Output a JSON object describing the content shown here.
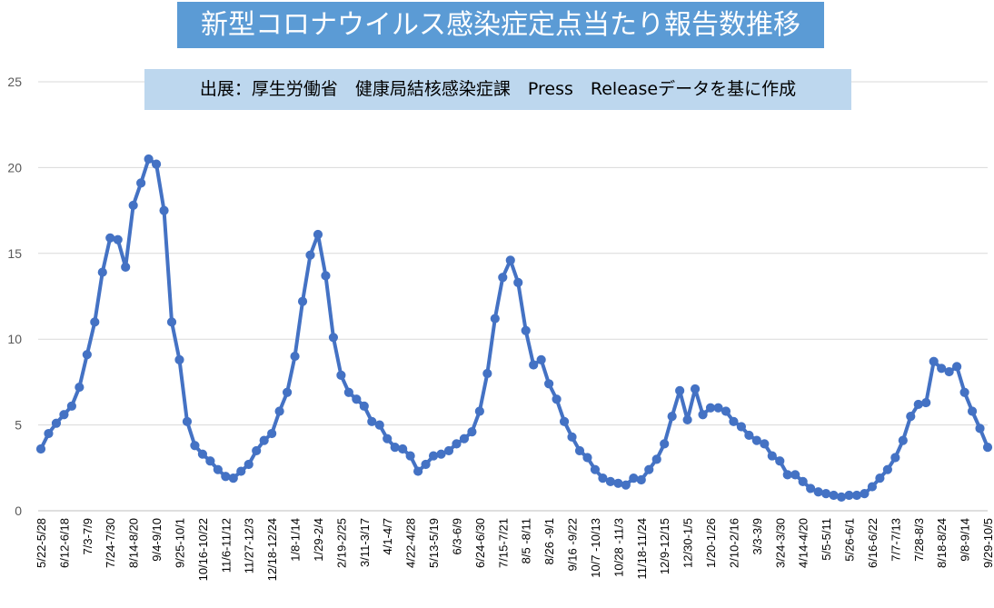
{
  "chart_data": {
    "type": "line",
    "title": "新型コロナウイルス感染症定点当たり報告数推移",
    "subtitle": "出展：厚生労働省　健康局結核感染症課　Press　Releaseデータを基に作成",
    "xlabel": "",
    "ylabel": "",
    "ylim": [
      0,
      25
    ],
    "yticks": [
      0,
      5,
      10,
      15,
      20,
      25
    ],
    "grid": true,
    "legend": "none",
    "colors": {
      "series": "#4472c4",
      "title_bg": "#5b9bd5",
      "subtitle_bg": "#bdd7ee",
      "grid": "#d9d9d9"
    },
    "x_labels": [
      "5/22-5/28",
      "6/12-6/18",
      "7/3-7/9",
      "7/24-7/30",
      "8/14-8/20",
      "9/4-9/10",
      "9/25-10/1",
      "10/16-10/22",
      "11/6-11/12",
      "11/27-12/3",
      "12/18-12/24",
      "1/8-1/14",
      "1/29-2/4",
      "2/19-2/25",
      "3/11-3/17",
      "4/1-4/7",
      "4/22-4/28",
      "5/13-5/19",
      "6/3-6/9",
      "6/24-6/30",
      "7/15-7/21",
      "8/5 -8/11",
      "8/26 -9/1",
      "9/16 -9/22",
      "10/7 -10/13",
      "10/28 -11/3",
      "11/18-11/24",
      "12/9-12/15",
      "12/30-1/5",
      "1/20-1/26",
      "2/10-2/16",
      "3/3-3/9",
      "3/24-3/30",
      "4/14-4/20",
      "5/5-5/11",
      "5/26-6/1",
      "6/16-6/22",
      "7/7-7/13",
      "7/28-8/3",
      "8/18-8/24",
      "9/8-9/14",
      "9/29-10/5"
    ],
    "series": [
      {
        "values": [
          3.6,
          4.5,
          5.1,
          5.6,
          6.1,
          7.2,
          9.1,
          11.0,
          13.9,
          15.9,
          15.8,
          14.2,
          17.8,
          19.1,
          20.5,
          20.2,
          17.5,
          11.0,
          8.8,
          5.2,
          3.8,
          3.3,
          2.9,
          2.4,
          2.0,
          1.9,
          2.3,
          2.7,
          3.5,
          4.1,
          4.5,
          5.8,
          6.9,
          9.0,
          12.2,
          14.9,
          16.1,
          13.7,
          10.1,
          7.9,
          6.9,
          6.5,
          6.1,
          5.2,
          5.0,
          4.2,
          3.7,
          3.6,
          3.2,
          2.3,
          2.7,
          3.2,
          3.3,
          3.5,
          3.9,
          4.2,
          4.6,
          5.8,
          8.0,
          11.2,
          13.6,
          14.6,
          13.3,
          10.5,
          8.5,
          8.8,
          7.4,
          6.5,
          5.2,
          4.3,
          3.5,
          3.1,
          2.4,
          1.9,
          1.7,
          1.6,
          1.5,
          1.9,
          1.8,
          2.4,
          3.0,
          3.9,
          5.5,
          7.0,
          5.3,
          7.1,
          5.6,
          6.0,
          6.0,
          5.8,
          5.2,
          4.9,
          4.4,
          4.1,
          3.9,
          3.2,
          2.9,
          2.1,
          2.1,
          1.7,
          1.3,
          1.1,
          1.0,
          0.9,
          0.8,
          0.9,
          0.9,
          1.0,
          1.4,
          1.9,
          2.4,
          3.1,
          4.1,
          5.5,
          6.2,
          6.3,
          8.7,
          8.3,
          8.1,
          8.4,
          6.9,
          5.8,
          4.8,
          3.7
        ]
      }
    ]
  }
}
